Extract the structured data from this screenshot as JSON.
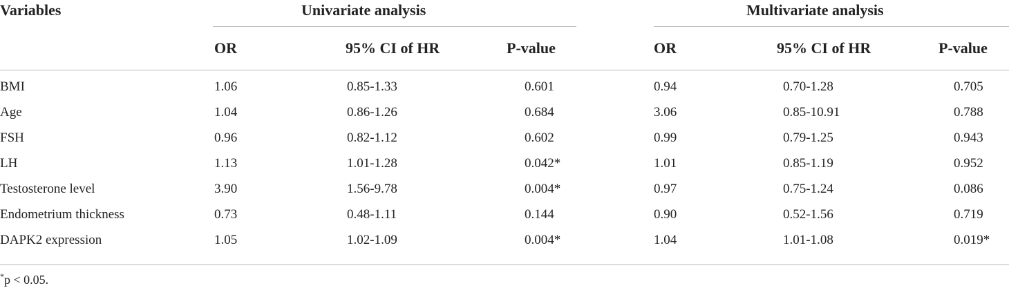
{
  "header": {
    "variables": "Variables",
    "univariate": "Univariate analysis",
    "multivariate": "Multivariate analysis"
  },
  "subheader": {
    "or": "OR",
    "ci": "95% CI of HR",
    "p": "P-value"
  },
  "rows": [
    {
      "variable": "BMI",
      "u_or": "1.06",
      "u_ci": "0.85-1.33",
      "u_p": "0.601",
      "m_or": "0.94",
      "m_ci": "0.70-1.28",
      "m_p": "0.705"
    },
    {
      "variable": "Age",
      "u_or": "1.04",
      "u_ci": "0.86-1.26",
      "u_p": "0.684",
      "m_or": "3.06",
      "m_ci": "0.85-10.91",
      "m_p": "0.788"
    },
    {
      "variable": "FSH",
      "u_or": "0.96",
      "u_ci": "0.82-1.12",
      "u_p": "0.602",
      "m_or": "0.99",
      "m_ci": "0.79-1.25",
      "m_p": "0.943"
    },
    {
      "variable": "LH",
      "u_or": "1.13",
      "u_ci": "1.01-1.28",
      "u_p": "0.042*",
      "m_or": "1.01",
      "m_ci": "0.85-1.19",
      "m_p": "0.952"
    },
    {
      "variable": "Testosterone level",
      "u_or": "3.90",
      "u_ci": "1.56-9.78",
      "u_p": "0.004*",
      "m_or": "0.97",
      "m_ci": "0.75-1.24",
      "m_p": "0.086"
    },
    {
      "variable": "Endometrium thickness",
      "u_or": "0.73",
      "u_ci": "0.48-1.11",
      "u_p": "0.144",
      "m_or": "0.90",
      "m_ci": "0.52-1.56",
      "m_p": "0.719"
    },
    {
      "variable": "DAPK2 expression",
      "u_or": "1.05",
      "u_ci": "1.02-1.09",
      "u_p": "0.004*",
      "m_or": "1.04",
      "m_ci": "1.01-1.08",
      "m_p": "0.019*"
    }
  ],
  "footnote": {
    "mark": "*",
    "text": "p < 0.05."
  }
}
